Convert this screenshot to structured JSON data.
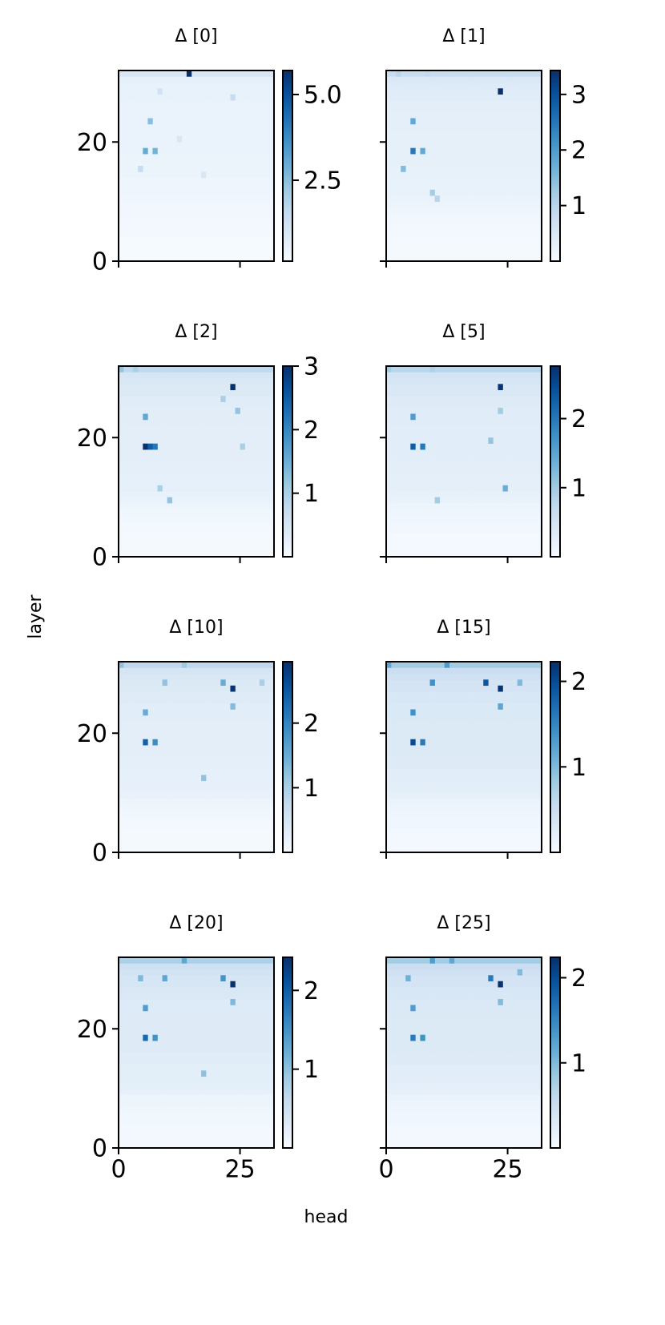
{
  "figure": {
    "xlabel": "head",
    "ylabel": "layer"
  },
  "chart_data": [
    {
      "type": "heatmap",
      "title": "Δ [0]",
      "colormap": "Blues",
      "xlim": [
        0,
        32
      ],
      "ylim": [
        0,
        32
      ],
      "xticks": [
        0,
        25
      ],
      "yticks": [
        0,
        20
      ],
      "xticklabels": false,
      "yticklabels": true,
      "clim": [
        0.14,
        5.7
      ],
      "cticks": [
        2.5,
        {
          "value": 5,
          "label": "5.0"
        }
      ],
      "background": [
        0.2,
        0.2,
        0.2,
        0.2,
        0.25,
        0.25,
        0.25,
        0.3,
        0.3,
        0.3,
        0.35,
        0.4,
        0.4,
        0.4,
        0.45,
        0.45,
        0.45,
        0.45,
        0.5,
        0.5,
        0.5,
        0.5,
        0.5,
        0.5,
        0.5,
        0.5,
        0.5,
        0.55,
        0.55,
        0.55,
        0.6,
        1.0
      ],
      "cells": [
        [
          14,
          31,
          5.7
        ],
        [
          5,
          18,
          3.0
        ],
        [
          7,
          18,
          2.8
        ],
        [
          6,
          23,
          2.5
        ],
        [
          4,
          15,
          1.5
        ],
        [
          23,
          27,
          1.5
        ],
        [
          12,
          20,
          1.0
        ],
        [
          8,
          28,
          1.2
        ],
        [
          17,
          14,
          1.0
        ]
      ]
    },
    {
      "type": "heatmap",
      "title": "Δ [1]",
      "colormap": "Blues",
      "xlim": [
        0,
        32
      ],
      "ylim": [
        0,
        32
      ],
      "xticks": [
        0,
        25
      ],
      "yticks": [
        0,
        20
      ],
      "xticklabels": false,
      "yticklabels": false,
      "clim": [
        0,
        3.43
      ],
      "cticks": [
        1,
        2,
        3
      ],
      "background": [
        0.05,
        0.05,
        0.05,
        0.05,
        0.08,
        0.08,
        0.1,
        0.12,
        0.15,
        0.2,
        0.22,
        0.25,
        0.25,
        0.25,
        0.28,
        0.28,
        0.3,
        0.3,
        0.3,
        0.3,
        0.3,
        0.3,
        0.32,
        0.32,
        0.32,
        0.35,
        0.35,
        0.4,
        0.4,
        0.45,
        0.5,
        0.8
      ],
      "cells": [
        [
          23,
          28,
          3.4
        ],
        [
          5,
          18,
          2.5
        ],
        [
          7,
          18,
          1.8
        ],
        [
          5,
          23,
          1.8
        ],
        [
          3,
          15,
          1.5
        ],
        [
          9,
          11,
          1.2
        ],
        [
          10,
          10,
          1.0
        ],
        [
          2,
          31,
          1.0
        ],
        [
          8,
          31,
          0.9
        ]
      ]
    },
    {
      "type": "heatmap",
      "title": "Δ [2]",
      "colormap": "Blues",
      "xlim": [
        0,
        32
      ],
      "ylim": [
        0,
        32
      ],
      "xticks": [
        0,
        25
      ],
      "yticks": [
        0,
        20
      ],
      "xticklabels": false,
      "yticklabels": true,
      "clim": [
        0,
        3.0
      ],
      "cticks": [
        1,
        2,
        3
      ],
      "background": [
        0.05,
        0.05,
        0.05,
        0.05,
        0.08,
        0.08,
        0.1,
        0.12,
        0.15,
        0.2,
        0.22,
        0.25,
        0.25,
        0.25,
        0.28,
        0.28,
        0.3,
        0.3,
        0.3,
        0.3,
        0.3,
        0.3,
        0.32,
        0.32,
        0.32,
        0.35,
        0.35,
        0.4,
        0.4,
        0.45,
        0.5,
        0.8
      ],
      "cells": [
        [
          23,
          28,
          3.0
        ],
        [
          5,
          18,
          3.0
        ],
        [
          6,
          18,
          2.5
        ],
        [
          7,
          18,
          2.2
        ],
        [
          5,
          23,
          1.6
        ],
        [
          21,
          26,
          1.0
        ],
        [
          24,
          24,
          1.2
        ],
        [
          25,
          18,
          1.0
        ],
        [
          8,
          11,
          1.0
        ],
        [
          10,
          9,
          1.2
        ],
        [
          0,
          31,
          1.2
        ],
        [
          3,
          31,
          1.0
        ]
      ]
    },
    {
      "type": "heatmap",
      "title": "Δ [5]",
      "colormap": "Blues",
      "xlim": [
        0,
        32
      ],
      "ylim": [
        0,
        32
      ],
      "xticks": [
        0,
        25
      ],
      "yticks": [
        0,
        20
      ],
      "xticklabels": false,
      "yticklabels": false,
      "clim": [
        0,
        2.76
      ],
      "cticks": [
        1,
        2
      ],
      "background": [
        0.05,
        0.05,
        0.05,
        0.05,
        0.08,
        0.08,
        0.1,
        0.12,
        0.15,
        0.2,
        0.22,
        0.25,
        0.25,
        0.25,
        0.28,
        0.28,
        0.3,
        0.3,
        0.3,
        0.3,
        0.3,
        0.3,
        0.32,
        0.32,
        0.32,
        0.35,
        0.35,
        0.4,
        0.4,
        0.45,
        0.5,
        0.8
      ],
      "cells": [
        [
          23,
          28,
          2.7
        ],
        [
          5,
          18,
          2.3
        ],
        [
          7,
          18,
          2.0
        ],
        [
          5,
          23,
          1.6
        ],
        [
          23,
          24,
          1.0
        ],
        [
          21,
          19,
          1.1
        ],
        [
          24,
          11,
          1.4
        ],
        [
          10,
          9,
          1.0
        ],
        [
          0,
          31,
          1.0
        ],
        [
          9,
          31,
          0.9
        ]
      ]
    },
    {
      "type": "heatmap",
      "title": "Δ [10]",
      "colormap": "Blues",
      "xlim": [
        0,
        32
      ],
      "ylim": [
        0,
        32
      ],
      "xticks": [
        0,
        25
      ],
      "yticks": [
        0,
        20
      ],
      "xticklabels": false,
      "yticklabels": true,
      "clim": [
        0,
        2.95
      ],
      "cticks": [
        1,
        2
      ],
      "background": [
        0.05,
        0.05,
        0.05,
        0.05,
        0.08,
        0.08,
        0.1,
        0.12,
        0.15,
        0.2,
        0.22,
        0.25,
        0.25,
        0.25,
        0.28,
        0.28,
        0.3,
        0.3,
        0.3,
        0.3,
        0.3,
        0.3,
        0.32,
        0.32,
        0.32,
        0.35,
        0.35,
        0.4,
        0.4,
        0.45,
        0.5,
        0.8
      ],
      "cells": [
        [
          23,
          27,
          2.9
        ],
        [
          5,
          18,
          2.4
        ],
        [
          7,
          18,
          1.9
        ],
        [
          5,
          23,
          1.5
        ],
        [
          21,
          28,
          1.5
        ],
        [
          23,
          24,
          1.3
        ],
        [
          9,
          28,
          1.2
        ],
        [
          13,
          31,
          1.1
        ],
        [
          17,
          12,
          1.2
        ],
        [
          0,
          31,
          1.2
        ],
        [
          29,
          28,
          1.0
        ]
      ]
    },
    {
      "type": "heatmap",
      "title": "Δ [15]",
      "colormap": "Blues",
      "xlim": [
        0,
        32
      ],
      "ylim": [
        0,
        32
      ],
      "xticks": [
        0,
        25
      ],
      "yticks": [
        0,
        20
      ],
      "xticklabels": false,
      "yticklabels": false,
      "clim": [
        0,
        2.23
      ],
      "cticks": [
        1,
        2
      ],
      "background": [
        0.05,
        0.05,
        0.05,
        0.05,
        0.08,
        0.08,
        0.1,
        0.12,
        0.15,
        0.2,
        0.22,
        0.25,
        0.25,
        0.25,
        0.28,
        0.28,
        0.3,
        0.3,
        0.3,
        0.3,
        0.3,
        0.3,
        0.32,
        0.32,
        0.32,
        0.35,
        0.35,
        0.4,
        0.4,
        0.45,
        0.5,
        0.8
      ],
      "cells": [
        [
          23,
          27,
          2.2
        ],
        [
          20,
          28,
          1.9
        ],
        [
          5,
          18,
          2.0
        ],
        [
          7,
          18,
          1.6
        ],
        [
          5,
          23,
          1.4
        ],
        [
          9,
          28,
          1.4
        ],
        [
          12,
          31,
          1.3
        ],
        [
          0,
          31,
          1.2
        ],
        [
          23,
          24,
          1.2
        ],
        [
          27,
          28,
          1.0
        ]
      ]
    },
    {
      "type": "heatmap",
      "title": "Δ [20]",
      "colormap": "Blues",
      "xlim": [
        0,
        32
      ],
      "ylim": [
        0,
        32
      ],
      "xticks": [
        0,
        25
      ],
      "yticks": [
        0,
        20
      ],
      "xticklabels": true,
      "yticklabels": true,
      "clim": [
        0,
        2.42
      ],
      "cticks": [
        1,
        2
      ],
      "background": [
        0.05,
        0.05,
        0.05,
        0.05,
        0.08,
        0.08,
        0.1,
        0.12,
        0.15,
        0.2,
        0.22,
        0.25,
        0.25,
        0.25,
        0.28,
        0.28,
        0.3,
        0.3,
        0.3,
        0.3,
        0.3,
        0.3,
        0.32,
        0.32,
        0.32,
        0.35,
        0.35,
        0.4,
        0.4,
        0.45,
        0.5,
        0.8
      ],
      "cells": [
        [
          23,
          27,
          2.4
        ],
        [
          5,
          18,
          1.9
        ],
        [
          7,
          18,
          1.5
        ],
        [
          5,
          23,
          1.4
        ],
        [
          13,
          31,
          1.3
        ],
        [
          21,
          28,
          1.5
        ],
        [
          9,
          28,
          1.3
        ],
        [
          4,
          28,
          1.1
        ],
        [
          23,
          24,
          1.1
        ],
        [
          17,
          12,
          1.0
        ]
      ]
    },
    {
      "type": "heatmap",
      "title": "Δ [25]",
      "colormap": "Blues",
      "xlim": [
        0,
        32
      ],
      "ylim": [
        0,
        32
      ],
      "xticks": [
        0,
        25
      ],
      "yticks": [
        0,
        20
      ],
      "xticklabels": true,
      "yticklabels": false,
      "clim": [
        0,
        2.24
      ],
      "cticks": [
        1,
        2
      ],
      "background": [
        0.05,
        0.05,
        0.05,
        0.05,
        0.08,
        0.08,
        0.1,
        0.12,
        0.15,
        0.2,
        0.22,
        0.25,
        0.25,
        0.25,
        0.28,
        0.28,
        0.3,
        0.3,
        0.3,
        0.3,
        0.3,
        0.3,
        0.32,
        0.32,
        0.32,
        0.35,
        0.35,
        0.4,
        0.4,
        0.45,
        0.5,
        0.8
      ],
      "cells": [
        [
          23,
          27,
          2.2
        ],
        [
          21,
          28,
          1.6
        ],
        [
          5,
          18,
          1.6
        ],
        [
          7,
          18,
          1.4
        ],
        [
          5,
          23,
          1.3
        ],
        [
          9,
          31,
          1.3
        ],
        [
          13,
          31,
          1.2
        ],
        [
          4,
          28,
          1.1
        ],
        [
          27,
          29,
          1.0
        ],
        [
          23,
          24,
          1.0
        ]
      ]
    }
  ]
}
